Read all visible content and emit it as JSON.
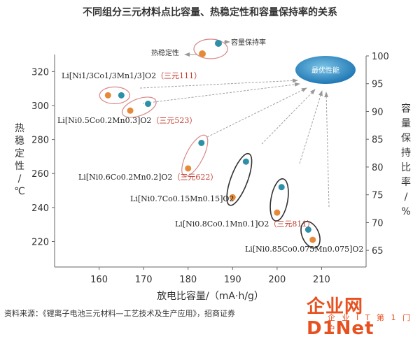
{
  "chart_data": {
    "type": "scatter",
    "title": "不同组分三元材料点比容量、热稳定性和容量保持率的关系",
    "xlabel": "放电比容量/（mA·h/g）",
    "ylabel_left": "热稳定性/℃",
    "ylabel_right": "容量保持比率/%",
    "xlim": [
      150,
      220
    ],
    "ylim_left": [
      205,
      330
    ],
    "ylim_right": [
      62,
      100
    ],
    "x_ticks": [
      160,
      170,
      180,
      190,
      200,
      210
    ],
    "y_left_ticks": [
      220,
      240,
      260,
      280,
      300,
      320
    ],
    "y_right_ticks": [
      65,
      70,
      75,
      80,
      85,
      90,
      95,
      100
    ],
    "legend": {
      "thermal": "热稳定性",
      "retention": "容量保持率",
      "thermal_color": "#e58a3a",
      "retention_color": "#2e8fa8",
      "optimum": "最优性能",
      "optimum_color": "#2e8fc0"
    },
    "groups": [
      {
        "label": "Li[Ni1/3Co1/3Mn1/3]O2（三元111）",
        "thermal": {
          "x": 162,
          "y": 306
        },
        "retention": {
          "x": 165,
          "y": 306
        },
        "retention_pct": 94
      },
      {
        "label": "Li[Ni0.5Co0.2Mn0.3]O2（三元523）",
        "thermal": {
          "x": 167,
          "y": 297
        },
        "retention": {
          "x": 171,
          "y": 301
        },
        "retention_pct": 92
      },
      {
        "label": "Li[Ni0.6Co0.2Mn0.2]O2（三元622）",
        "thermal": {
          "x": 180,
          "y": 263
        },
        "retention": {
          "x": 183,
          "y": 278
        },
        "retention_pct": 85
      },
      {
        "label": "Li[Ni0.7Co0.15Mn0.15]O2",
        "thermal": {
          "x": 190,
          "y": 246
        },
        "retention": {
          "x": 193,
          "y": 267
        },
        "retention_pct": 82
      },
      {
        "label": "Li[Ni0.8Co0.1Mn0.1]O2（三元811）",
        "thermal": {
          "x": 200,
          "y": 237
        },
        "retention": {
          "x": 201,
          "y": 252
        },
        "retention_pct": 78
      },
      {
        "label": "Li[Ni0.85Co0.075Mn0.075]O2",
        "thermal": {
          "x": 208,
          "y": 221
        },
        "retention": {
          "x": 207,
          "y": 227
        },
        "retention_pct": 71
      }
    ]
  },
  "footer": {
    "source": "资料来源：《锂离子电池三元材料—工艺技术及生产应用》，招商证券",
    "watermark": "企业网D1Net",
    "watermark_sub": "企 业 I T 第 1 门 户"
  }
}
